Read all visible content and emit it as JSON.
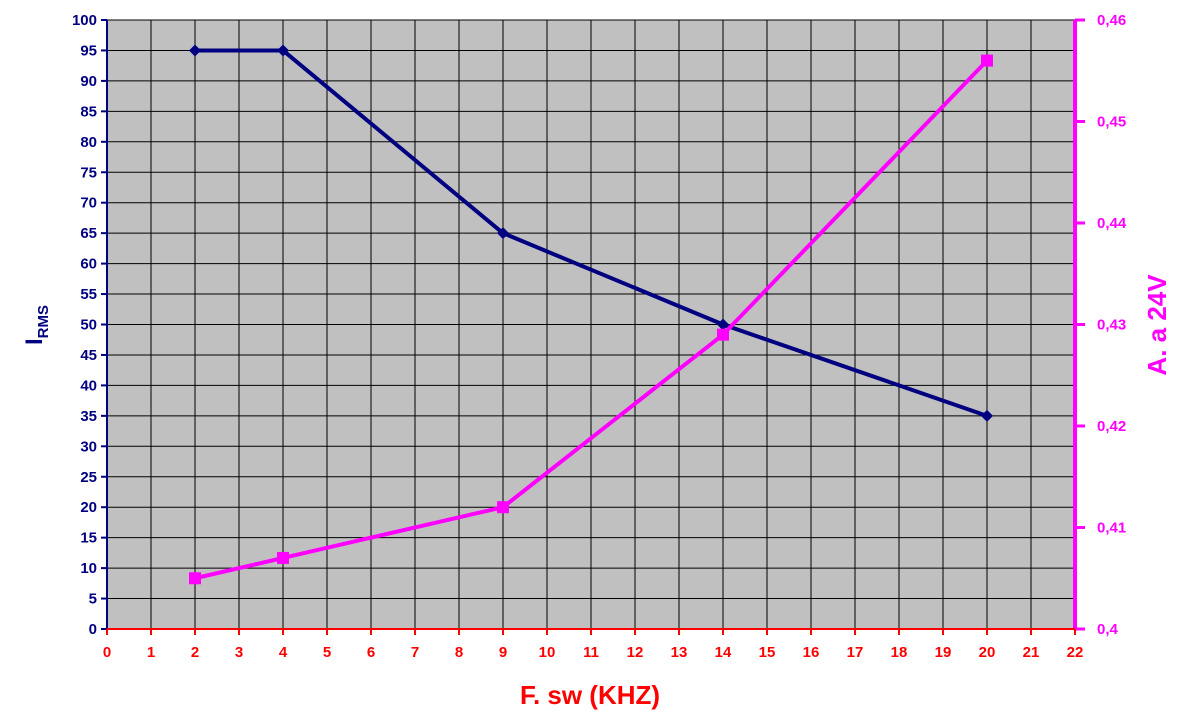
{
  "chart_data": {
    "type": "line",
    "title": "",
    "xlabel": "F. sw (KHZ)",
    "ylabel_left": {
      "main": "I",
      "sub": "RMS"
    },
    "ylabel_right": "A. a 24V",
    "xlim": [
      0,
      22
    ],
    "ylim_left": [
      0,
      100
    ],
    "ylim_right": [
      0.4,
      0.46
    ],
    "x_ticks": [
      "0",
      "1",
      "2",
      "3",
      "4",
      "5",
      "6",
      "7",
      "8",
      "9",
      "10",
      "11",
      "12",
      "13",
      "14",
      "15",
      "16",
      "17",
      "18",
      "19",
      "20",
      "21",
      "22"
    ],
    "y_left_ticks": [
      "0",
      "5",
      "10",
      "15",
      "20",
      "25",
      "30",
      "35",
      "40",
      "45",
      "50",
      "55",
      "60",
      "65",
      "70",
      "75",
      "80",
      "85",
      "90",
      "95",
      "100"
    ],
    "y_right_ticks": [
      "0,4",
      "0,41",
      "0,42",
      "0,43",
      "0,44",
      "0,45",
      "0,46"
    ],
    "grid": true,
    "background_color": "#c0c0c0",
    "series": [
      {
        "axis": "left",
        "color": "#000080",
        "marker": "diamond",
        "x": [
          2,
          4,
          9,
          14,
          20
        ],
        "values": [
          95,
          95,
          65,
          50,
          35
        ]
      },
      {
        "axis": "right",
        "color": "#ff00ff",
        "marker": "square",
        "x": [
          2,
          4,
          9,
          14,
          20
        ],
        "values": [
          0.405,
          0.407,
          0.412,
          0.429,
          0.456
        ]
      }
    ]
  }
}
